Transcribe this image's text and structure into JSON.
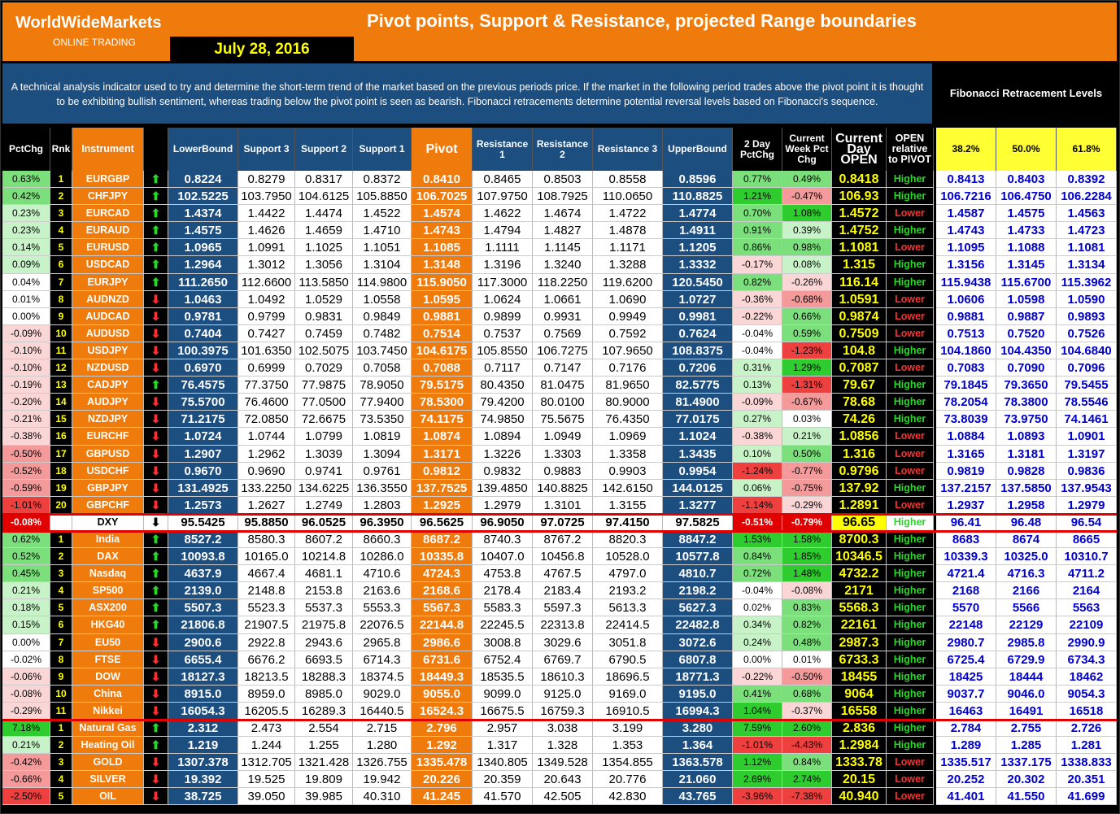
{
  "header": {
    "brand": "WorldWideMarkets",
    "brand_sub": "ONLINE TRADING",
    "date": "July 28, 2016",
    "title": "Pivot points, Support & Resistance, projected Range boundaries",
    "description": "A technical analysis indicator used to try and determine the short-term trend of the market based on the previous periods price. If the market in the following period trades above the pivot point it is thought to be exhibiting bullish sentiment, whereas trading below the pivot point is seen as bearish. Fibonacci retracements determine potential reversal levels based on Fibonacci's sequence.",
    "fib_title": "Fibonacci Retracement Levels"
  },
  "columns": [
    "PctChg",
    "Rnk",
    "Instrument",
    "",
    "LowerBound",
    "Support 3",
    "Support 2",
    "Support 1",
    "Pivot",
    "Resistance 1",
    "Resistance 2",
    "Resistance 3",
    "UpperBound",
    "2 Day PctChg",
    "Current Week Pct Chg",
    "Current Day OPEN",
    "OPEN relative to PIVOT",
    "38.2%",
    "50.0%",
    "61.8%"
  ],
  "rows": [
    [
      "0.63%",
      "1",
      "EURGBP",
      "up",
      "0.8224",
      "0.8279",
      "0.8317",
      "0.8372",
      "0.8410",
      "0.8465",
      "0.8503",
      "0.8558",
      "0.8596",
      "0.77%",
      "0.49%",
      "0.8418",
      "Higher",
      "0.8413",
      "0.8403",
      "0.8392"
    ],
    [
      "0.42%",
      "2",
      "CHFJPY",
      "up",
      "102.5225",
      "103.7950",
      "104.6125",
      "105.8850",
      "106.7025",
      "107.9750",
      "108.7925",
      "110.0650",
      "110.8825",
      "1.21%",
      "-0.47%",
      "106.93",
      "Higher",
      "106.7216",
      "106.4750",
      "106.2284"
    ],
    [
      "0.23%",
      "3",
      "EURCAD",
      "up",
      "1.4374",
      "1.4422",
      "1.4474",
      "1.4522",
      "1.4574",
      "1.4622",
      "1.4674",
      "1.4722",
      "1.4774",
      "0.70%",
      "1.08%",
      "1.4572",
      "Lower",
      "1.4587",
      "1.4575",
      "1.4563"
    ],
    [
      "0.23%",
      "4",
      "EURAUD",
      "up",
      "1.4575",
      "1.4626",
      "1.4659",
      "1.4710",
      "1.4743",
      "1.4794",
      "1.4827",
      "1.4878",
      "1.4911",
      "0.91%",
      "0.39%",
      "1.4752",
      "Higher",
      "1.4743",
      "1.4733",
      "1.4723"
    ],
    [
      "0.14%",
      "5",
      "EURUSD",
      "up",
      "1.0965",
      "1.0991",
      "1.1025",
      "1.1051",
      "1.1085",
      "1.1111",
      "1.1145",
      "1.1171",
      "1.1205",
      "0.86%",
      "0.98%",
      "1.1081",
      "Lower",
      "1.1095",
      "1.1088",
      "1.1081"
    ],
    [
      "0.09%",
      "6",
      "USDCAD",
      "up",
      "1.2964",
      "1.3012",
      "1.3056",
      "1.3104",
      "1.3148",
      "1.3196",
      "1.3240",
      "1.3288",
      "1.3332",
      "-0.17%",
      "0.08%",
      "1.315",
      "Higher",
      "1.3156",
      "1.3145",
      "1.3134"
    ],
    [
      "0.04%",
      "7",
      "EURJPY",
      "up",
      "111.2650",
      "112.6600",
      "113.5850",
      "114.9800",
      "115.9050",
      "117.3000",
      "118.2250",
      "119.6200",
      "120.5450",
      "0.82%",
      "-0.26%",
      "116.14",
      "Higher",
      "115.9438",
      "115.6700",
      "115.3962"
    ],
    [
      "0.01%",
      "8",
      "AUDNZD",
      "dn",
      "1.0463",
      "1.0492",
      "1.0529",
      "1.0558",
      "1.0595",
      "1.0624",
      "1.0661",
      "1.0690",
      "1.0727",
      "-0.36%",
      "-0.68%",
      "1.0591",
      "Lower",
      "1.0606",
      "1.0598",
      "1.0590"
    ],
    [
      "0.00%",
      "9",
      "AUDCAD",
      "dn",
      "0.9781",
      "0.9799",
      "0.9831",
      "0.9849",
      "0.9881",
      "0.9899",
      "0.9931",
      "0.9949",
      "0.9981",
      "-0.22%",
      "0.66%",
      "0.9874",
      "Lower",
      "0.9881",
      "0.9887",
      "0.9893"
    ],
    [
      "-0.09%",
      "10",
      "AUDUSD",
      "dn",
      "0.7404",
      "0.7427",
      "0.7459",
      "0.7482",
      "0.7514",
      "0.7537",
      "0.7569",
      "0.7592",
      "0.7624",
      "-0.04%",
      "0.59%",
      "0.7509",
      "Lower",
      "0.7513",
      "0.7520",
      "0.7526"
    ],
    [
      "-0.10%",
      "11",
      "USDJPY",
      "dn",
      "100.3975",
      "101.6350",
      "102.5075",
      "103.7450",
      "104.6175",
      "105.8550",
      "106.7275",
      "107.9650",
      "108.8375",
      "-0.04%",
      "-1.23%",
      "104.8",
      "Higher",
      "104.1860",
      "104.4350",
      "104.6840"
    ],
    [
      "-0.10%",
      "12",
      "NZDUSD",
      "dn",
      "0.6970",
      "0.6999",
      "0.7029",
      "0.7058",
      "0.7088",
      "0.7117",
      "0.7147",
      "0.7176",
      "0.7206",
      "0.31%",
      "1.29%",
      "0.7087",
      "Lower",
      "0.7083",
      "0.7090",
      "0.7096"
    ],
    [
      "-0.19%",
      "13",
      "CADJPY",
      "up",
      "76.4575",
      "77.3750",
      "77.9875",
      "78.9050",
      "79.5175",
      "80.4350",
      "81.0475",
      "81.9650",
      "82.5775",
      "0.13%",
      "-1.31%",
      "79.67",
      "Higher",
      "79.1845",
      "79.3650",
      "79.5455"
    ],
    [
      "-0.20%",
      "14",
      "AUDJPY",
      "dn",
      "75.5700",
      "76.4600",
      "77.0500",
      "77.9400",
      "78.5300",
      "79.4200",
      "80.0100",
      "80.9000",
      "81.4900",
      "-0.09%",
      "-0.67%",
      "78.68",
      "Higher",
      "78.2054",
      "78.3800",
      "78.5546"
    ],
    [
      "-0.21%",
      "15",
      "NZDJPY",
      "dn",
      "71.2175",
      "72.0850",
      "72.6675",
      "73.5350",
      "74.1175",
      "74.9850",
      "75.5675",
      "76.4350",
      "77.0175",
      "0.27%",
      "0.03%",
      "74.26",
      "Higher",
      "73.8039",
      "73.9750",
      "74.1461"
    ],
    [
      "-0.38%",
      "16",
      "EURCHF",
      "dn",
      "1.0724",
      "1.0744",
      "1.0799",
      "1.0819",
      "1.0874",
      "1.0894",
      "1.0949",
      "1.0969",
      "1.1024",
      "-0.38%",
      "0.21%",
      "1.0856",
      "Lower",
      "1.0884",
      "1.0893",
      "1.0901"
    ],
    [
      "-0.50%",
      "17",
      "GBPUSD",
      "dn",
      "1.2907",
      "1.2962",
      "1.3039",
      "1.3094",
      "1.3171",
      "1.3226",
      "1.3303",
      "1.3358",
      "1.3435",
      "0.10%",
      "0.50%",
      "1.316",
      "Lower",
      "1.3165",
      "1.3181",
      "1.3197"
    ],
    [
      "-0.52%",
      "18",
      "USDCHF",
      "dn",
      "0.9670",
      "0.9690",
      "0.9741",
      "0.9761",
      "0.9812",
      "0.9832",
      "0.9883",
      "0.9903",
      "0.9954",
      "-1.24%",
      "-0.77%",
      "0.9796",
      "Lower",
      "0.9819",
      "0.9828",
      "0.9836"
    ],
    [
      "-0.59%",
      "19",
      "GBPJPY",
      "dn",
      "131.4925",
      "133.2250",
      "134.6225",
      "136.3550",
      "137.7525",
      "139.4850",
      "140.8825",
      "142.6150",
      "144.0125",
      "0.06%",
      "-0.75%",
      "137.92",
      "Higher",
      "137.2157",
      "137.5850",
      "137.9543"
    ],
    [
      "-1.01%",
      "20",
      "GBPCHF",
      "dn",
      "1.2573",
      "1.2627",
      "1.2749",
      "1.2803",
      "1.2925",
      "1.2979",
      "1.3101",
      "1.3155",
      "1.3277",
      "-1.14%",
      "-0.29%",
      "1.2891",
      "Lower",
      "1.2937",
      "1.2958",
      "1.2979"
    ],
    [
      "-0.08%",
      "",
      "DXY",
      "dn",
      "95.5425",
      "95.8850",
      "96.0525",
      "96.3950",
      "96.5625",
      "96.9050",
      "97.0725",
      "97.4150",
      "97.5825",
      "-0.51%",
      "-0.79%",
      "96.65",
      "Higher",
      "96.41",
      "96.48",
      "96.54"
    ],
    [
      "0.62%",
      "1",
      "India",
      "up",
      "8527.2",
      "8580.3",
      "8607.2",
      "8660.3",
      "8687.2",
      "8740.3",
      "8767.2",
      "8820.3",
      "8847.2",
      "1.53%",
      "1.58%",
      "8700.3",
      "Higher",
      "8683",
      "8674",
      "8665"
    ],
    [
      "0.52%",
      "2",
      "DAX",
      "up",
      "10093.8",
      "10165.0",
      "10214.8",
      "10286.0",
      "10335.8",
      "10407.0",
      "10456.8",
      "10528.0",
      "10577.8",
      "0.84%",
      "1.85%",
      "10346.5",
      "Higher",
      "10339.3",
      "10325.0",
      "10310.7"
    ],
    [
      "0.45%",
      "3",
      "Nasdaq",
      "up",
      "4637.9",
      "4667.4",
      "4681.1",
      "4710.6",
      "4724.3",
      "4753.8",
      "4767.5",
      "4797.0",
      "4810.7",
      "0.72%",
      "1.48%",
      "4732.2",
      "Higher",
      "4721.4",
      "4716.3",
      "4711.2"
    ],
    [
      "0.21%",
      "4",
      "SP500",
      "up",
      "2139.0",
      "2148.8",
      "2153.8",
      "2163.6",
      "2168.6",
      "2178.4",
      "2183.4",
      "2193.2",
      "2198.2",
      "-0.04%",
      "-0.08%",
      "2171",
      "Higher",
      "2168",
      "2166",
      "2164"
    ],
    [
      "0.18%",
      "5",
      "ASX200",
      "up",
      "5507.3",
      "5523.3",
      "5537.3",
      "5553.3",
      "5567.3",
      "5583.3",
      "5597.3",
      "5613.3",
      "5627.3",
      "0.02%",
      "0.83%",
      "5568.3",
      "Higher",
      "5570",
      "5566",
      "5563"
    ],
    [
      "0.15%",
      "6",
      "HKG40",
      "up",
      "21806.8",
      "21907.5",
      "21975.8",
      "22076.5",
      "22144.8",
      "22245.5",
      "22313.8",
      "22414.5",
      "22482.8",
      "0.34%",
      "0.82%",
      "22161",
      "Higher",
      "22148",
      "22129",
      "22109"
    ],
    [
      "0.00%",
      "7",
      "EU50",
      "dn",
      "2900.6",
      "2922.8",
      "2943.6",
      "2965.8",
      "2986.6",
      "3008.8",
      "3029.6",
      "3051.8",
      "3072.6",
      "0.24%",
      "0.48%",
      "2987.3",
      "Higher",
      "2980.7",
      "2985.8",
      "2990.9"
    ],
    [
      "-0.02%",
      "8",
      "FTSE",
      "dn",
      "6655.4",
      "6676.2",
      "6693.5",
      "6714.3",
      "6731.6",
      "6752.4",
      "6769.7",
      "6790.5",
      "6807.8",
      "0.00%",
      "0.01%",
      "6733.3",
      "Higher",
      "6725.4",
      "6729.9",
      "6734.3"
    ],
    [
      "-0.06%",
      "9",
      "DOW",
      "dn",
      "18127.3",
      "18213.5",
      "18288.3",
      "18374.5",
      "18449.3",
      "18535.5",
      "18610.3",
      "18696.5",
      "18771.3",
      "-0.22%",
      "-0.50%",
      "18455",
      "Higher",
      "18425",
      "18444",
      "18462"
    ],
    [
      "-0.08%",
      "10",
      "China",
      "dn",
      "8915.0",
      "8959.0",
      "8985.0",
      "9029.0",
      "9055.0",
      "9099.0",
      "9125.0",
      "9169.0",
      "9195.0",
      "0.41%",
      "0.68%",
      "9064",
      "Higher",
      "9037.7",
      "9046.0",
      "9054.3"
    ],
    [
      "-0.29%",
      "11",
      "Nikkei",
      "dn",
      "16054.3",
      "16205.5",
      "16289.3",
      "16440.5",
      "16524.3",
      "16675.5",
      "16759.3",
      "16910.5",
      "16994.3",
      "1.04%",
      "-0.37%",
      "16558",
      "Higher",
      "16463",
      "16491",
      "16518"
    ],
    [
      "7.18%",
      "1",
      "Natural Gas",
      "up",
      "2.312",
      "2.473",
      "2.554",
      "2.715",
      "2.796",
      "2.957",
      "3.038",
      "3.199",
      "3.280",
      "7.59%",
      "2.60%",
      "2.836",
      "Higher",
      "2.784",
      "2.755",
      "2.726"
    ],
    [
      "0.21%",
      "2",
      "Heating Oil",
      "up",
      "1.219",
      "1.244",
      "1.255",
      "1.280",
      "1.292",
      "1.317",
      "1.328",
      "1.353",
      "1.364",
      "-1.01%",
      "-4.43%",
      "1.2984",
      "Higher",
      "1.289",
      "1.285",
      "1.281"
    ],
    [
      "-0.42%",
      "3",
      "GOLD",
      "dn",
      "1307.378",
      "1312.705",
      "1321.428",
      "1326.755",
      "1335.478",
      "1340.805",
      "1349.528",
      "1354.855",
      "1363.578",
      "1.12%",
      "0.84%",
      "1333.78",
      "Lower",
      "1335.517",
      "1337.175",
      "1338.833"
    ],
    [
      "-0.66%",
      "4",
      "SILVER",
      "dn",
      "19.392",
      "19.525",
      "19.809",
      "19.942",
      "20.226",
      "20.359",
      "20.643",
      "20.776",
      "21.060",
      "2.69%",
      "2.74%",
      "20.15",
      "Lower",
      "20.252",
      "20.302",
      "20.351"
    ],
    [
      "-2.50%",
      "5",
      "OIL",
      "dn",
      "38.725",
      "39.050",
      "39.985",
      "40.310",
      "41.245",
      "41.570",
      "42.505",
      "42.830",
      "43.765",
      "-3.96%",
      "-7.38%",
      "40.940",
      "Lower",
      "41.401",
      "41.550",
      "41.699"
    ]
  ],
  "colors": {
    "orange": "#f07b0d",
    "navy": "#1c4e80",
    "yellow": "#ffff00",
    "green": "#2bd62b",
    "red": "#ff3030"
  }
}
